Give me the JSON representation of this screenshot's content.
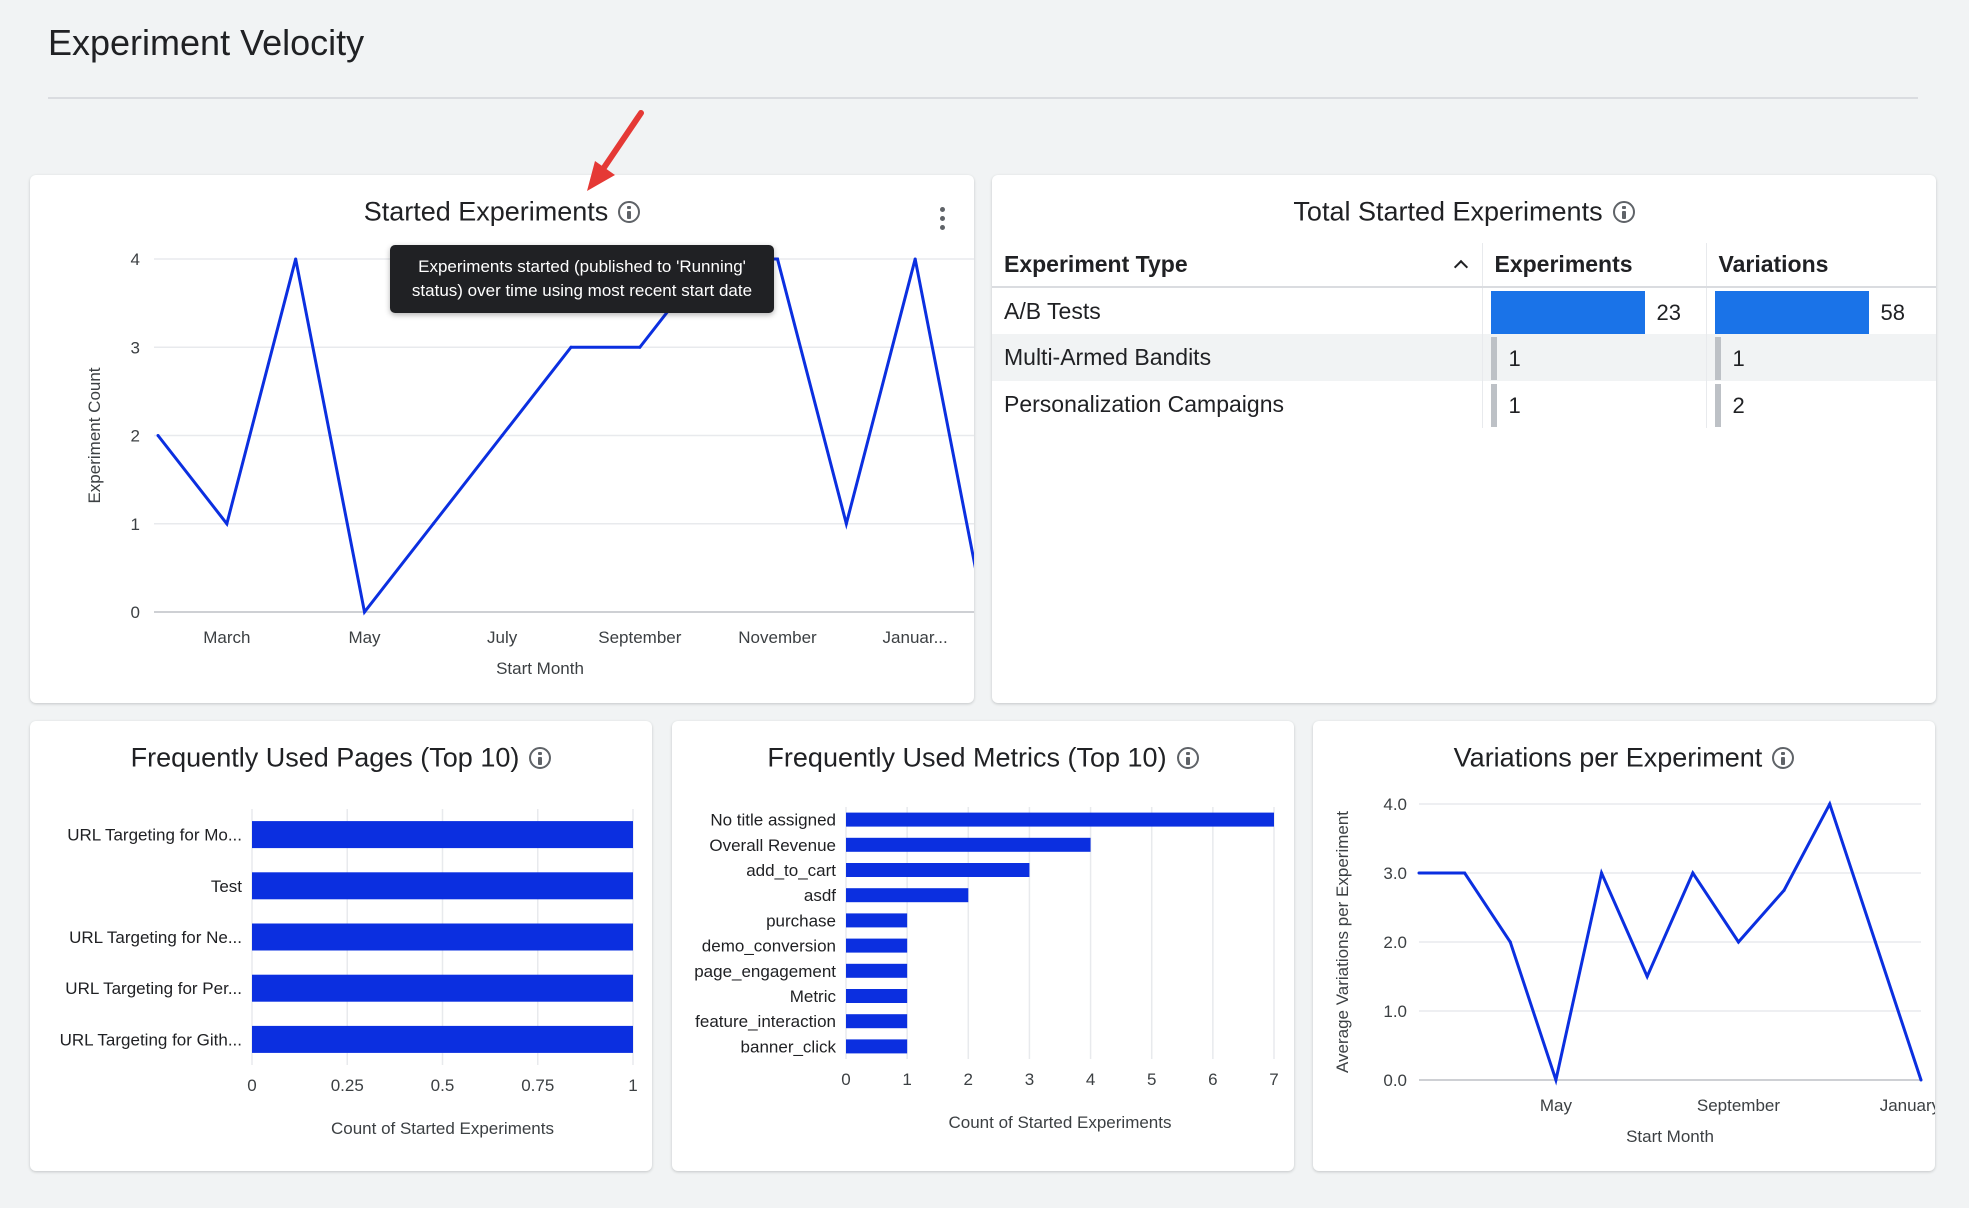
{
  "page": {
    "title": "Experiment Velocity"
  },
  "started_experiments": {
    "title": "Started Experiments",
    "tooltip": "Experiments started (published to 'Running' status) over time using most recent start date",
    "menu_icon": "kebab-menu-icon",
    "chart_data": {
      "type": "line",
      "x_tick_labels": [
        "March",
        "May",
        "July",
        "September",
        "November",
        "Januar..."
      ],
      "values": [
        2,
        1,
        4,
        0,
        1,
        2,
        3,
        3,
        4,
        4,
        1,
        4,
        0
      ],
      "y_ticks": [
        "0",
        "1",
        "2",
        "3",
        "4"
      ],
      "ylim": [
        0,
        4
      ],
      "xlabel": "Start Month",
      "ylabel": "Experiment Count",
      "color": "#0b2fe0"
    }
  },
  "total_started": {
    "title": "Total Started Experiments",
    "headers": {
      "type": "Experiment Type",
      "experiments": "Experiments",
      "variations": "Variations"
    },
    "rows": [
      {
        "type": "A/B Tests",
        "experiments": 23,
        "variations": 58
      },
      {
        "type": "Multi-Armed Bandits",
        "experiments": 1,
        "variations": 1
      },
      {
        "type": "Personalization Campaigns",
        "experiments": 1,
        "variations": 2
      }
    ],
    "bar_color": "#1a73e8"
  },
  "frequent_pages": {
    "title": "Frequently Used Pages (Top 10)",
    "chart_data": {
      "type": "bar",
      "categories": [
        "URL Targeting for Mo...",
        "Test",
        "URL Targeting for Ne...",
        "URL Targeting for Per...",
        "URL Targeting for Gith..."
      ],
      "values": [
        1,
        1,
        1,
        1,
        1
      ],
      "x_ticks": [
        "0",
        "0.25",
        "0.5",
        "0.75",
        "1"
      ],
      "xlim": [
        0,
        1
      ],
      "xlabel": "Count of Started Experiments",
      "color": "#0b2fe0"
    }
  },
  "frequent_metrics": {
    "title": "Frequently Used Metrics (Top 10)",
    "chart_data": {
      "type": "bar",
      "categories": [
        "No title assigned",
        "Overall Revenue",
        "add_to_cart",
        "asdf",
        "purchase",
        "demo_conversion",
        "page_engagement",
        "Metric",
        "feature_interaction",
        "banner_click"
      ],
      "values": [
        7,
        4,
        3,
        2,
        1,
        1,
        1,
        1,
        1,
        1
      ],
      "x_ticks": [
        "0",
        "1",
        "2",
        "3",
        "4",
        "5",
        "6",
        "7"
      ],
      "xlim": [
        0,
        7
      ],
      "xlabel": "Count of Started Experiments",
      "color": "#0b2fe0"
    }
  },
  "variations_per_experiment": {
    "title": "Variations per Experiment",
    "chart_data": {
      "type": "line",
      "x_tick_labels": [
        "May",
        "September",
        "January '..."
      ],
      "values": [
        3,
        3,
        2,
        0,
        3,
        1.5,
        3,
        2,
        2.75,
        4,
        2,
        0
      ],
      "y_ticks": [
        "0.0",
        "1.0",
        "2.0",
        "3.0",
        "4.0"
      ],
      "ylim": [
        0,
        4
      ],
      "xlabel": "Start Month",
      "ylabel": "Average Variations per Experiment",
      "color": "#0b2fe0"
    }
  },
  "annotation": {
    "arrow_color": "#e53935"
  }
}
